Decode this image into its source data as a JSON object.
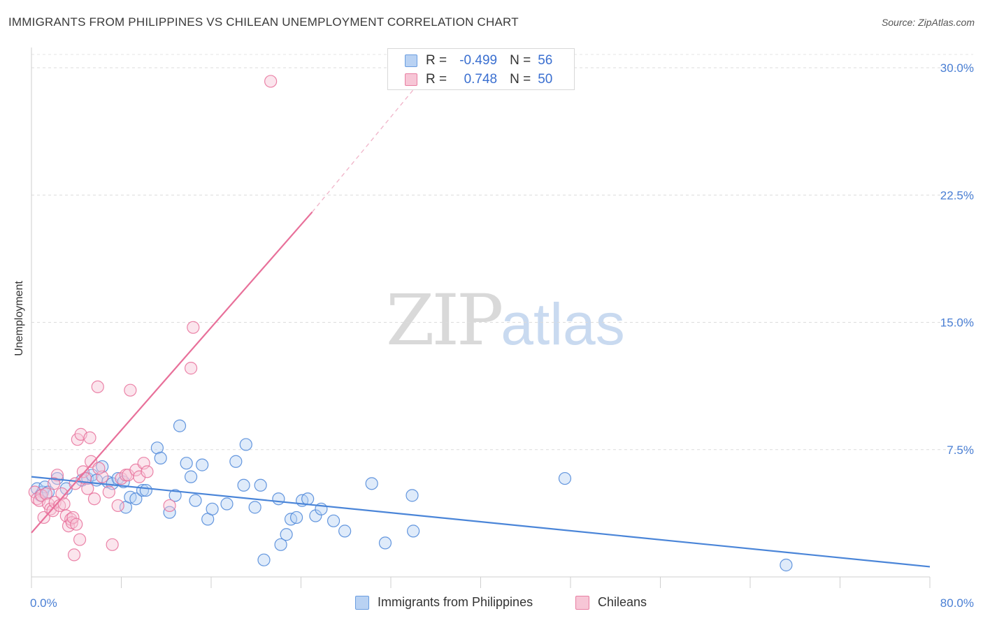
{
  "header": {
    "title": "IMMIGRANTS FROM PHILIPPINES VS CHILEAN UNEMPLOYMENT CORRELATION CHART",
    "source": "Source: ZipAtlas.com"
  },
  "watermark": {
    "zip": "ZIP",
    "atlas": "atlas"
  },
  "stats_legend": [
    {
      "r_label": "R =",
      "r_value": "-0.499",
      "n_label": "N =",
      "n_value": "56",
      "color": "#6a9de0",
      "fill": "#b9d2f3"
    },
    {
      "r_label": "R =",
      "r_value": "0.748",
      "n_label": "N =",
      "n_value": "50",
      "color": "#e87fa2",
      "fill": "#f7c6d6"
    }
  ],
  "bottom_legend": [
    {
      "label": "Immigrants from Philippines",
      "color": "#6a9de0",
      "fill": "#b9d2f3"
    },
    {
      "label": "Chileans",
      "color": "#e87fa2",
      "fill": "#f7c6d6"
    }
  ],
  "chart_data": {
    "type": "scatter",
    "title": "IMMIGRANTS FROM PHILIPPINES VS CHILEAN UNEMPLOYMENT CORRELATION CHART",
    "xlabel": "",
    "ylabel": "Unemployment",
    "xlim": [
      0,
      80
    ],
    "ylim": [
      0,
      30
    ],
    "x_tick_labels": [
      "0.0%",
      "80.0%"
    ],
    "y_ticks": [
      7.5,
      15.0,
      22.5,
      30.0
    ],
    "y_tick_labels": [
      "7.5%",
      "15.0%",
      "22.5%",
      "30.0%"
    ],
    "grid": "horizontal dashed",
    "series": [
      {
        "name": "Immigrants from Philippines",
        "color": "#4a85d8",
        "fill": "#b9d2f3",
        "trend": {
          "x": [
            0,
            80
          ],
          "y": [
            5.9,
            0.6
          ]
        },
        "points": [
          [
            0.5,
            5.2
          ],
          [
            0.8,
            4.8
          ],
          [
            1.0,
            5.0
          ],
          [
            1.2,
            5.3
          ],
          [
            1.5,
            5.0
          ],
          [
            2.3,
            5.8
          ],
          [
            3.1,
            5.2
          ],
          [
            4.5,
            5.7
          ],
          [
            5.0,
            5.8
          ],
          [
            5.4,
            6.0
          ],
          [
            5.8,
            5.7
          ],
          [
            6.3,
            6.5
          ],
          [
            6.8,
            5.6
          ],
          [
            7.2,
            5.5
          ],
          [
            7.7,
            5.8
          ],
          [
            8.2,
            5.6
          ],
          [
            8.4,
            4.1
          ],
          [
            8.8,
            4.7
          ],
          [
            9.3,
            4.6
          ],
          [
            9.9,
            5.1
          ],
          [
            10.2,
            5.1
          ],
          [
            11.2,
            7.6
          ],
          [
            11.5,
            7.0
          ],
          [
            12.3,
            3.8
          ],
          [
            12.8,
            4.8
          ],
          [
            13.2,
            8.9
          ],
          [
            13.8,
            6.7
          ],
          [
            14.2,
            5.9
          ],
          [
            14.6,
            4.5
          ],
          [
            15.2,
            6.6
          ],
          [
            15.7,
            3.4
          ],
          [
            16.1,
            4.0
          ],
          [
            17.4,
            4.3
          ],
          [
            18.2,
            6.8
          ],
          [
            18.9,
            5.4
          ],
          [
            19.1,
            7.8
          ],
          [
            19.9,
            4.1
          ],
          [
            20.4,
            5.4
          ],
          [
            20.7,
            1.0
          ],
          [
            22.0,
            4.6
          ],
          [
            22.2,
            1.9
          ],
          [
            22.7,
            2.5
          ],
          [
            23.1,
            3.4
          ],
          [
            23.6,
            3.5
          ],
          [
            24.1,
            4.5
          ],
          [
            24.6,
            4.6
          ],
          [
            25.3,
            3.6
          ],
          [
            25.8,
            4.0
          ],
          [
            26.9,
            3.3
          ],
          [
            27.9,
            2.7
          ],
          [
            30.3,
            5.5
          ],
          [
            31.5,
            2.0
          ],
          [
            33.9,
            4.8
          ],
          [
            34.0,
            2.7
          ],
          [
            47.5,
            5.8
          ],
          [
            67.2,
            0.7
          ]
        ]
      },
      {
        "name": "Chileans",
        "color": "#e8709a",
        "fill": "#f7c6d6",
        "trend": {
          "x": [
            0,
            25
          ],
          "y": [
            2.6,
            21.5
          ],
          "dash_to": [
            34,
            28.7
          ]
        },
        "points": [
          [
            0.3,
            5.0
          ],
          [
            0.5,
            4.6
          ],
          [
            0.7,
            4.5
          ],
          [
            0.9,
            4.8
          ],
          [
            1.1,
            3.5
          ],
          [
            1.3,
            4.9
          ],
          [
            1.5,
            4.3
          ],
          [
            1.7,
            4.0
          ],
          [
            1.9,
            3.9
          ],
          [
            2.1,
            4.4
          ],
          [
            2.3,
            6.0
          ],
          [
            2.5,
            4.2
          ],
          [
            2.7,
            4.9
          ],
          [
            2.9,
            4.3
          ],
          [
            3.1,
            3.6
          ],
          [
            3.3,
            3.0
          ],
          [
            3.5,
            3.4
          ],
          [
            3.6,
            3.2
          ],
          [
            3.7,
            3.5
          ],
          [
            3.8,
            1.3
          ],
          [
            3.9,
            5.5
          ],
          [
            4.0,
            3.1
          ],
          [
            4.1,
            8.1
          ],
          [
            4.3,
            2.2
          ],
          [
            4.4,
            8.4
          ],
          [
            4.6,
            6.2
          ],
          [
            4.8,
            5.8
          ],
          [
            5.0,
            5.2
          ],
          [
            5.2,
            8.2
          ],
          [
            5.3,
            6.8
          ],
          [
            5.6,
            4.6
          ],
          [
            5.9,
            11.2
          ],
          [
            6.3,
            5.9
          ],
          [
            6.9,
            5.0
          ],
          [
            7.2,
            1.9
          ],
          [
            7.7,
            4.2
          ],
          [
            8.0,
            5.8
          ],
          [
            8.4,
            6.0
          ],
          [
            8.6,
            6.0
          ],
          [
            8.8,
            11.0
          ],
          [
            9.3,
            6.3
          ],
          [
            9.6,
            5.9
          ],
          [
            10.0,
            6.7
          ],
          [
            10.3,
            6.2
          ],
          [
            12.3,
            4.2
          ],
          [
            14.2,
            12.3
          ],
          [
            14.4,
            14.7
          ],
          [
            21.3,
            29.2
          ],
          [
            2.0,
            5.5
          ],
          [
            6.0,
            6.4
          ]
        ]
      }
    ]
  }
}
